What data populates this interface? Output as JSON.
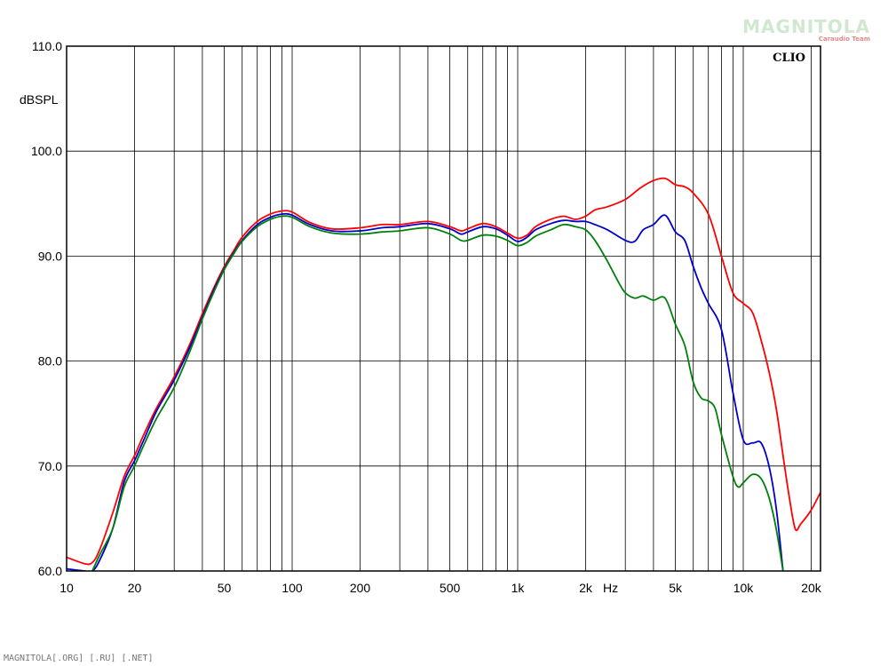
{
  "watermark": {
    "main": "MAGNITOLA",
    "sub": "Caraudio Team"
  },
  "footer_text": "MAGNITOLA[.ORG] [.RU] [.NET]",
  "chart_data": {
    "type": "line",
    "brand": "CLIO",
    "ylabel": "dBSPL",
    "xlabel": "Hz",
    "xscale": "log",
    "xlim": [
      10,
      22000
    ],
    "ylim": [
      60,
      110
    ],
    "grid": true,
    "y_ticks": [
      {
        "value": 60,
        "label": "60.0"
      },
      {
        "value": 70,
        "label": "70.0"
      },
      {
        "value": 80,
        "label": "80.0"
      },
      {
        "value": 90,
        "label": "90.0"
      },
      {
        "value": 100,
        "label": "100.0"
      },
      {
        "value": 110,
        "label": "110.0"
      }
    ],
    "x_ticks": [
      {
        "value": 10,
        "label": "10"
      },
      {
        "value": 20,
        "label": "20"
      },
      {
        "value": 50,
        "label": "50"
      },
      {
        "value": 100,
        "label": "100"
      },
      {
        "value": 200,
        "label": "200"
      },
      {
        "value": 500,
        "label": "500"
      },
      {
        "value": 1000,
        "label": "1k"
      },
      {
        "value": 2000,
        "label": "2k"
      },
      {
        "value": 5000,
        "label": "5k"
      },
      {
        "value": 10000,
        "label": "10k"
      },
      {
        "value": 20000,
        "label": "20k"
      }
    ],
    "x_gridlines": [
      10,
      20,
      30,
      40,
      50,
      60,
      70,
      80,
      90,
      100,
      200,
      300,
      400,
      500,
      600,
      700,
      800,
      900,
      1000,
      2000,
      3000,
      4000,
      5000,
      6000,
      7000,
      8000,
      9000,
      10000,
      20000
    ],
    "series": [
      {
        "color": "#ff0000",
        "x": [
          10,
          12,
          13,
          14,
          16,
          18,
          20,
          22,
          25,
          30,
          35,
          40,
          45,
          50,
          55,
          60,
          70,
          80,
          90,
          100,
          120,
          150,
          200,
          250,
          300,
          400,
          500,
          560,
          600,
          700,
          800,
          900,
          1000,
          1100,
          1200,
          1400,
          1600,
          1800,
          2000,
          2200,
          2500,
          3000,
          3500,
          4000,
          4500,
          5000,
          5500,
          6000,
          7000,
          8000,
          9000,
          10000,
          11000,
          12000,
          13000,
          14000,
          15000,
          16000,
          17000,
          18000,
          20000,
          22000
        ],
        "y": [
          61.3,
          60.7,
          60.8,
          62,
          65.5,
          69,
          71,
          73,
          75.5,
          78.5,
          81.5,
          84.5,
          87,
          89,
          90.5,
          91.8,
          93.3,
          94,
          94.3,
          94.2,
          93.2,
          92.6,
          92.7,
          93,
          93,
          93.3,
          92.8,
          92.4,
          92.6,
          93.1,
          92.8,
          92.2,
          91.7,
          92,
          92.8,
          93.5,
          93.8,
          93.5,
          93.8,
          94.4,
          94.7,
          95.4,
          96.5,
          97.2,
          97.4,
          96.8,
          96.6,
          96,
          94,
          90,
          86.5,
          85.5,
          84.6,
          82,
          79,
          75.5,
          71,
          67,
          64,
          64.5,
          65.8,
          67.5
        ]
      },
      {
        "color": "#0000cc",
        "x": [
          10,
          12,
          13,
          14,
          16,
          18,
          20,
          22,
          25,
          30,
          35,
          40,
          45,
          50,
          55,
          60,
          70,
          80,
          90,
          100,
          120,
          150,
          200,
          250,
          300,
          400,
          500,
          560,
          600,
          700,
          800,
          900,
          1000,
          1100,
          1200,
          1400,
          1600,
          1800,
          2000,
          2200,
          2500,
          3000,
          3300,
          3600,
          4000,
          4500,
          5000,
          5500,
          6000,
          6500,
          7000,
          8000,
          9000,
          10000,
          11000,
          12000,
          13000,
          14000,
          15000
        ],
        "y": [
          60.2,
          60,
          60,
          61,
          64,
          68.5,
          70.5,
          72.5,
          75.2,
          78.2,
          81.2,
          84.2,
          86.8,
          88.8,
          90.3,
          91.5,
          93,
          93.7,
          94,
          93.9,
          93,
          92.4,
          92.4,
          92.7,
          92.8,
          93.1,
          92.6,
          92.1,
          92.3,
          92.8,
          92.6,
          92,
          91.4,
          91.8,
          92.5,
          93.1,
          93.4,
          93.3,
          93.3,
          93,
          92.5,
          91.5,
          91.4,
          92.5,
          93,
          93.9,
          92.3,
          91.5,
          89,
          87,
          85.5,
          83,
          77,
          72.5,
          72.2,
          72.2,
          70,
          66,
          60
        ]
      },
      {
        "color": "#00800a",
        "x": [
          13,
          14,
          16,
          18,
          20,
          22,
          25,
          30,
          35,
          40,
          45,
          50,
          55,
          60,
          70,
          80,
          90,
          100,
          120,
          150,
          200,
          250,
          300,
          400,
          500,
          560,
          600,
          700,
          800,
          900,
          1000,
          1100,
          1200,
          1400,
          1600,
          1800,
          2000,
          2200,
          2500,
          2800,
          3000,
          3300,
          3600,
          4000,
          4500,
          5000,
          5500,
          6000,
          6500,
          7000,
          7500,
          8000,
          9000,
          9500,
          10000,
          11000,
          12000,
          13000,
          14000,
          15000
        ],
        "y": [
          60,
          61.5,
          64,
          68,
          70,
          72,
          74.5,
          77.5,
          80.8,
          84,
          86.6,
          88.7,
          90.2,
          91.4,
          92.8,
          93.5,
          93.8,
          93.7,
          92.8,
          92.2,
          92.1,
          92.3,
          92.4,
          92.7,
          92.1,
          91.5,
          91.5,
          92,
          91.9,
          91.5,
          91,
          91.3,
          91.9,
          92.5,
          93,
          92.8,
          92.5,
          91.5,
          89.5,
          87.5,
          86.5,
          86,
          86.2,
          85.8,
          86,
          83.5,
          81.5,
          78,
          76.5,
          76.2,
          75.5,
          73,
          69,
          68,
          68.4,
          69.2,
          68.8,
          67,
          64,
          60
        ]
      }
    ]
  }
}
